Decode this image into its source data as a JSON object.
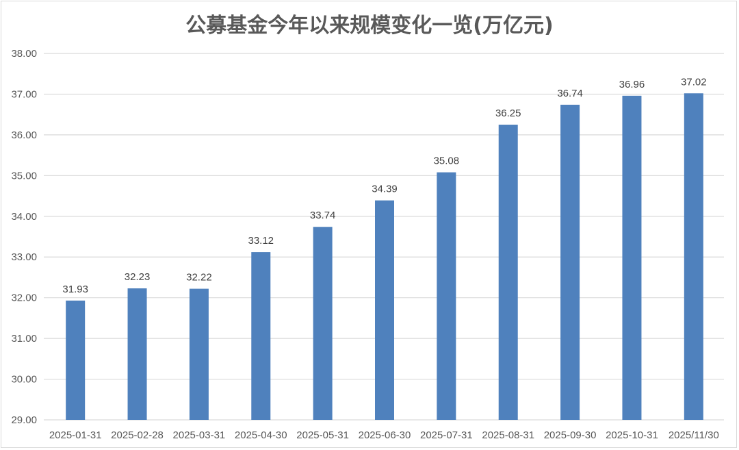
{
  "chart_data": {
    "type": "bar",
    "title": "公募基金今年以来规模变化一览(万亿元)",
    "xlabel": "",
    "ylabel": "",
    "categories": [
      "2025-01-31",
      "2025-02-28",
      "2025-03-31",
      "2025-04-30",
      "2025-05-31",
      "2025-06-30",
      "2025-07-31",
      "2025-08-31",
      "2025-09-30",
      "2025-10-31",
      "2025/11/30"
    ],
    "values": [
      31.93,
      32.23,
      32.22,
      33.12,
      33.74,
      34.39,
      35.08,
      36.25,
      36.74,
      36.96,
      37.02
    ],
    "data_labels": [
      "31.93",
      "32.23",
      "32.22",
      "33.12",
      "33.74",
      "34.39",
      "35.08",
      "36.25",
      "36.74",
      "36.96",
      "37.02"
    ],
    "ylim": [
      29,
      38
    ],
    "yticks": [
      "29.00",
      "30.00",
      "31.00",
      "32.00",
      "33.00",
      "34.00",
      "35.00",
      "36.00",
      "37.00",
      "38.00"
    ],
    "grid": true,
    "legend": "none",
    "bar_color": "#4F81BD"
  }
}
